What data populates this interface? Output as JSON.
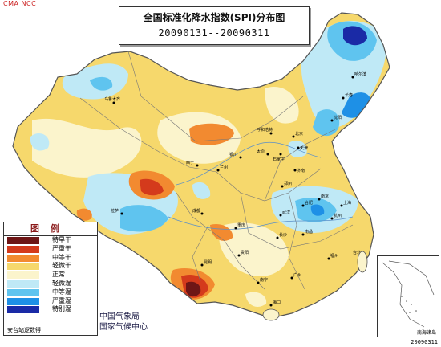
{
  "corner_code": "CMA NCC",
  "title": {
    "main": "全国标准化降水指数(SPI)分布图",
    "period": "20090131--20090311"
  },
  "legend": {
    "heading": "图例",
    "items": [
      {
        "label": "特旱干",
        "color": "#6e1616"
      },
      {
        "label": "严重干",
        "color": "#d43a1c"
      },
      {
        "label": "中等干",
        "color": "#f28a30"
      },
      {
        "label": "轻微干",
        "color": "#f6d86c"
      },
      {
        "label": "正常",
        "color": "#fbf4cc"
      },
      {
        "label": "轻微湿",
        "color": "#bfe9f6"
      },
      {
        "label": "中等湿",
        "color": "#5fc4ef"
      },
      {
        "label": "严重湿",
        "color": "#1e90e6"
      },
      {
        "label": "特别湿",
        "color": "#1a2aa6"
      }
    ],
    "source": "安台站逻数得"
  },
  "agency": {
    "line1": "中国气象局",
    "line2": "国家气候中心"
  },
  "inset_caption": "南海诸岛",
  "date_code": "20090311",
  "cities": [
    "哈尔滨",
    "长春",
    "沈阳",
    "乌鲁木齐",
    "呼和浩特",
    "北京",
    "天津",
    "太原",
    "石家庄",
    "济南",
    "银川",
    "西宁",
    "兰州",
    "郑州",
    "拉萨",
    "成都",
    "重庆",
    "武汉",
    "合肥",
    "南京",
    "上海",
    "杭州",
    "长沙",
    "南昌",
    "贵阳",
    "昆明",
    "福州",
    "广州",
    "南宁",
    "海口",
    "台北"
  ]
}
